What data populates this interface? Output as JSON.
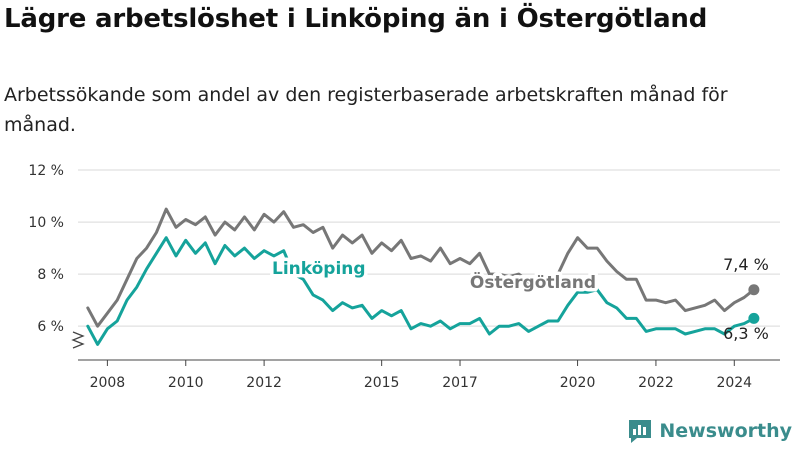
{
  "header": {
    "title": "Lägre arbetslöshet i Linköping än i Östergötland",
    "subtitle": "Arbetssökande som andel av den registerbaserade arbetskraften månad för månad."
  },
  "brand": {
    "name": "Newsworthy",
    "icon": "bar-chart-logo-icon",
    "color": "#3a8c8c"
  },
  "chart_data": {
    "type": "line",
    "x_unit": "month",
    "x_range": [
      "2007-10",
      "2025-09"
    ],
    "ylim": [
      4.7,
      12.5
    ],
    "y_ticks": [
      6,
      8,
      10,
      12
    ],
    "y_tick_labels": [
      "6 %",
      "8 %",
      "10 %",
      "12 %"
    ],
    "x_ticks": [
      2008,
      2010,
      2012,
      2015,
      2017,
      2020,
      2022,
      2024
    ],
    "x_tick_labels": [
      "2008",
      "2010",
      "2012",
      "2015",
      "2017",
      "2020",
      "2022",
      "2024"
    ],
    "grid": "horizontal",
    "axis_break": true,
    "series": [
      {
        "name": "Östergötland",
        "color": "#777777",
        "end_label": "7,4 %",
        "points": [
          [
            "2008-01",
            6.7
          ],
          [
            "2008-04",
            6.0
          ],
          [
            "2008-07",
            6.5
          ],
          [
            "2008-10",
            7.0
          ],
          [
            "2009-01",
            7.8
          ],
          [
            "2009-04",
            8.6
          ],
          [
            "2009-07",
            9.0
          ],
          [
            "2009-10",
            9.6
          ],
          [
            "2010-01",
            10.5
          ],
          [
            "2010-04",
            9.8
          ],
          [
            "2010-07",
            10.1
          ],
          [
            "2010-10",
            9.9
          ],
          [
            "2011-01",
            10.2
          ],
          [
            "2011-04",
            9.5
          ],
          [
            "2011-07",
            10.0
          ],
          [
            "2011-10",
            9.7
          ],
          [
            "2012-01",
            10.2
          ],
          [
            "2012-04",
            9.7
          ],
          [
            "2012-07",
            10.3
          ],
          [
            "2012-10",
            10.0
          ],
          [
            "2013-01",
            10.4
          ],
          [
            "2013-04",
            9.8
          ],
          [
            "2013-07",
            9.9
          ],
          [
            "2013-10",
            9.6
          ],
          [
            "2014-01",
            9.8
          ],
          [
            "2014-04",
            9.0
          ],
          [
            "2014-07",
            9.5
          ],
          [
            "2014-10",
            9.2
          ],
          [
            "2015-01",
            9.5
          ],
          [
            "2015-04",
            8.8
          ],
          [
            "2015-07",
            9.2
          ],
          [
            "2015-10",
            8.9
          ],
          [
            "2016-01",
            9.3
          ],
          [
            "2016-04",
            8.6
          ],
          [
            "2016-07",
            8.7
          ],
          [
            "2016-10",
            8.5
          ],
          [
            "2017-01",
            9.0
          ],
          [
            "2017-04",
            8.4
          ],
          [
            "2017-07",
            8.6
          ],
          [
            "2017-10",
            8.4
          ],
          [
            "2018-01",
            8.8
          ],
          [
            "2018-04",
            8.0
          ],
          [
            "2018-07",
            8.0
          ],
          [
            "2018-10",
            7.9
          ],
          [
            "2019-01",
            8.0
          ],
          [
            "2019-04",
            7.7
          ],
          [
            "2019-07",
            7.9
          ],
          [
            "2019-10",
            7.8
          ],
          [
            "2020-01",
            8.0
          ],
          [
            "2020-04",
            8.8
          ],
          [
            "2020-07",
            9.4
          ],
          [
            "2020-10",
            9.0
          ],
          [
            "2021-01",
            9.0
          ],
          [
            "2021-04",
            8.5
          ],
          [
            "2021-07",
            8.1
          ],
          [
            "2021-10",
            7.8
          ],
          [
            "2022-01",
            7.8
          ],
          [
            "2022-04",
            7.0
          ],
          [
            "2022-07",
            7.0
          ],
          [
            "2022-10",
            6.9
          ],
          [
            "2023-01",
            7.0
          ],
          [
            "2023-04",
            6.6
          ],
          [
            "2023-07",
            6.7
          ],
          [
            "2023-10",
            6.8
          ],
          [
            "2024-01",
            7.0
          ],
          [
            "2024-04",
            6.6
          ],
          [
            "2024-07",
            6.9
          ],
          [
            "2024-10",
            7.1
          ],
          [
            "2025-01",
            7.4
          ]
        ]
      },
      {
        "name": "Linköping",
        "color": "#15a39b",
        "end_label": "6,3 %",
        "points": [
          [
            "2008-01",
            6.0
          ],
          [
            "2008-04",
            5.3
          ],
          [
            "2008-07",
            5.9
          ],
          [
            "2008-10",
            6.2
          ],
          [
            "2009-01",
            7.0
          ],
          [
            "2009-04",
            7.5
          ],
          [
            "2009-07",
            8.2
          ],
          [
            "2009-10",
            8.8
          ],
          [
            "2010-01",
            9.4
          ],
          [
            "2010-04",
            8.7
          ],
          [
            "2010-07",
            9.3
          ],
          [
            "2010-10",
            8.8
          ],
          [
            "2011-01",
            9.2
          ],
          [
            "2011-04",
            8.4
          ],
          [
            "2011-07",
            9.1
          ],
          [
            "2011-10",
            8.7
          ],
          [
            "2012-01",
            9.0
          ],
          [
            "2012-04",
            8.6
          ],
          [
            "2012-07",
            8.9
          ],
          [
            "2012-10",
            8.7
          ],
          [
            "2013-01",
            8.9
          ],
          [
            "2013-04",
            8.0
          ],
          [
            "2013-07",
            7.8
          ],
          [
            "2013-10",
            7.2
          ],
          [
            "2014-01",
            7.0
          ],
          [
            "2014-04",
            6.6
          ],
          [
            "2014-07",
            6.9
          ],
          [
            "2014-10",
            6.7
          ],
          [
            "2015-01",
            6.8
          ],
          [
            "2015-04",
            6.3
          ],
          [
            "2015-07",
            6.6
          ],
          [
            "2015-10",
            6.4
          ],
          [
            "2016-01",
            6.6
          ],
          [
            "2016-04",
            5.9
          ],
          [
            "2016-07",
            6.1
          ],
          [
            "2016-10",
            6.0
          ],
          [
            "2017-01",
            6.2
          ],
          [
            "2017-04",
            5.9
          ],
          [
            "2017-07",
            6.1
          ],
          [
            "2017-10",
            6.1
          ],
          [
            "2018-01",
            6.3
          ],
          [
            "2018-04",
            5.7
          ],
          [
            "2018-07",
            6.0
          ],
          [
            "2018-10",
            6.0
          ],
          [
            "2019-01",
            6.1
          ],
          [
            "2019-04",
            5.8
          ],
          [
            "2019-07",
            6.0
          ],
          [
            "2019-10",
            6.2
          ],
          [
            "2020-01",
            6.2
          ],
          [
            "2020-04",
            6.8
          ],
          [
            "2020-07",
            7.3
          ],
          [
            "2020-10",
            7.3
          ],
          [
            "2021-01",
            7.4
          ],
          [
            "2021-04",
            6.9
          ],
          [
            "2021-07",
            6.7
          ],
          [
            "2021-10",
            6.3
          ],
          [
            "2022-01",
            6.3
          ],
          [
            "2022-04",
            5.8
          ],
          [
            "2022-07",
            5.9
          ],
          [
            "2022-10",
            5.9
          ],
          [
            "2023-01",
            5.9
          ],
          [
            "2023-04",
            5.7
          ],
          [
            "2023-07",
            5.8
          ],
          [
            "2023-10",
            5.9
          ],
          [
            "2024-01",
            5.9
          ],
          [
            "2024-04",
            5.7
          ],
          [
            "2024-07",
            6.0
          ],
          [
            "2024-10",
            6.1
          ],
          [
            "2025-01",
            6.3
          ]
        ]
      }
    ]
  }
}
